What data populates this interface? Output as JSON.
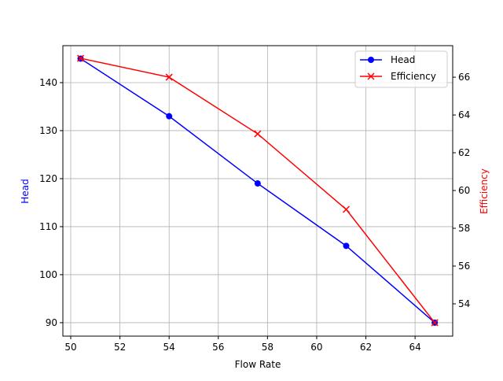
{
  "chart_data": {
    "type": "line",
    "xlabel": "Flow Rate",
    "x": [
      50.4,
      54.0,
      57.6,
      61.2,
      64.8
    ],
    "xlim": [
      49.68,
      65.53
    ],
    "xticks": [
      50,
      52,
      54,
      56,
      58,
      60,
      62,
      64
    ],
    "grid": true,
    "legend_position": "top-right",
    "axes": {
      "left": {
        "label": "Head",
        "color": "#0000ff",
        "ylim": [
          87.2,
          147.7
        ],
        "ticks": [
          90,
          100,
          110,
          120,
          130,
          140
        ]
      },
      "right": {
        "label": "Efficiency",
        "color": "#ff0000",
        "ylim": [
          52.29,
          67.67
        ],
        "ticks": [
          54,
          56,
          58,
          60,
          62,
          64,
          66
        ]
      }
    },
    "series": [
      {
        "name": "Head",
        "axis": "left",
        "color": "#0000ff",
        "marker": "circle",
        "values": [
          145,
          133,
          119,
          106,
          90
        ]
      },
      {
        "name": "Efficiency",
        "axis": "right",
        "color": "#ff0000",
        "marker": "x",
        "values": [
          67,
          66,
          63,
          59,
          53
        ]
      }
    ]
  }
}
